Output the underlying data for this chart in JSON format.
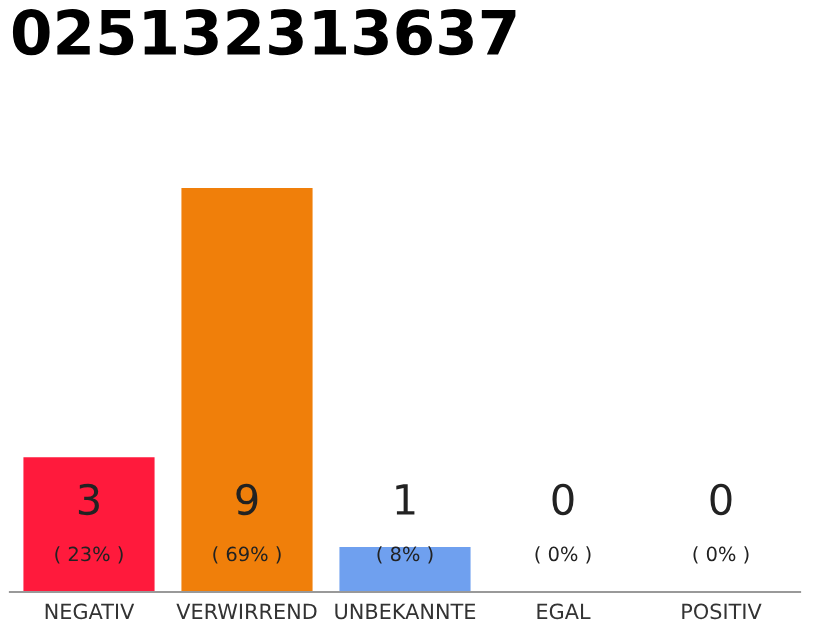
{
  "chart_data": {
    "type": "bar",
    "title": "025132313637",
    "categories": [
      "NEGATIV",
      "VERWIRREND",
      "UNBEKANNTE",
      "EGAL",
      "POSITIV"
    ],
    "values": [
      3,
      9,
      1,
      0,
      0
    ],
    "colors": [
      "#ff1a3c",
      "#f07f0a",
      "#6fa0ef",
      "#cccccc",
      "#cccccc"
    ],
    "value_labels": [
      "3\n( 23% )",
      "9\n( 69% )",
      "1\n( 8% )",
      "0\n( 0% )",
      "0\n( 0% )"
    ],
    "ylim": [
      0,
      9
    ],
    "tick_labels": "x",
    "grid": false,
    "legend": false
  }
}
